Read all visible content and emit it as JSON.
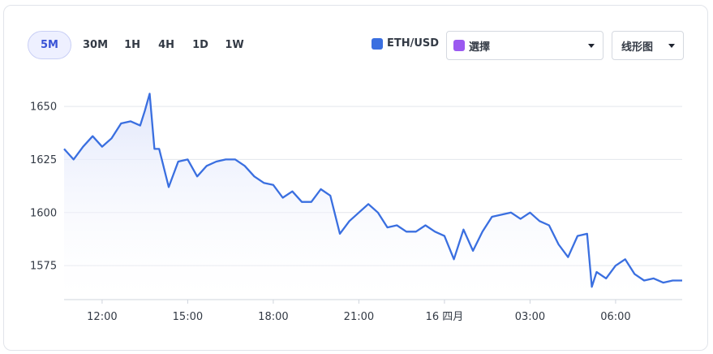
{
  "toolbar": {
    "timeframes": [
      "5M",
      "30M",
      "1H",
      "4H",
      "1D",
      "1W"
    ],
    "active_timeframe": "5M"
  },
  "legend": {
    "series_name": "ETH/USD",
    "series_color": "#3a6fe0",
    "compare_color": "#9b59f0"
  },
  "compare_select": {
    "label": "選擇"
  },
  "chart_type_select": {
    "label": "线形图"
  },
  "colors": {
    "line": "#3a6fe0",
    "area_top": "#dfe5fb",
    "grid": "#e3e6ec"
  },
  "chart_data": {
    "type": "area",
    "series": [
      {
        "name": "ETH/USD",
        "x": [
          "10:40",
          "11:00",
          "11:20",
          "11:40",
          "12:00",
          "12:20",
          "12:40",
          "13:00",
          "13:20",
          "13:30",
          "13:40",
          "13:50",
          "14:00",
          "14:20",
          "14:40",
          "15:00",
          "15:20",
          "15:40",
          "16:00",
          "16:20",
          "16:40",
          "17:00",
          "17:20",
          "17:40",
          "18:00",
          "18:20",
          "18:40",
          "19:00",
          "19:20",
          "19:40",
          "20:00",
          "20:20",
          "20:40",
          "21:00",
          "21:20",
          "21:40",
          "22:00",
          "22:20",
          "22:40",
          "23:00",
          "23:20",
          "23:40",
          "00:00",
          "00:20",
          "00:40",
          "01:00",
          "01:20",
          "01:40",
          "02:00",
          "02:20",
          "02:40",
          "03:00",
          "03:20",
          "03:40",
          "04:00",
          "04:20",
          "04:40",
          "05:00",
          "05:10",
          "05:20",
          "05:40",
          "06:00",
          "06:20",
          "06:40",
          "07:00",
          "07:20",
          "07:40",
          "08:00",
          "08:20"
        ],
        "y": [
          1630,
          1625,
          1631,
          1636,
          1631,
          1635,
          1642,
          1643,
          1641,
          1648,
          1656,
          1630,
          1630,
          1612,
          1624,
          1625,
          1617,
          1622,
          1624,
          1625,
          1625,
          1622,
          1617,
          1614,
          1613,
          1607,
          1610,
          1605,
          1605,
          1611,
          1608,
          1590,
          1596,
          1600,
          1604,
          1600,
          1593,
          1594,
          1591,
          1591,
          1594,
          1591,
          1589,
          1578,
          1592,
          1582,
          1591,
          1598,
          1599,
          1600,
          1597,
          1600,
          1596,
          1594,
          1585,
          1579,
          1589,
          1590,
          1565,
          1572,
          1569,
          1575,
          1578,
          1571,
          1568,
          1569,
          1567,
          1568,
          1568
        ]
      }
    ],
    "x_ticks": [
      "12:00",
      "15:00",
      "18:00",
      "21:00",
      "16 四月",
      "03:00",
      "06:00"
    ],
    "y_ticks": [
      1575,
      1600,
      1625,
      1650
    ],
    "ylim": [
      1559,
      1668
    ],
    "grid": true
  }
}
